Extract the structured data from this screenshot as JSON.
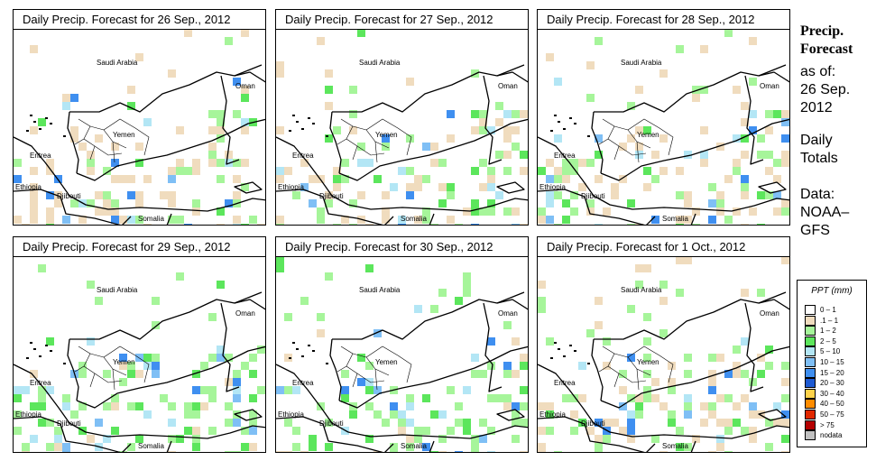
{
  "panels": [
    {
      "title": "Daily Precip. Forecast for  26 Sep., 2012",
      "seed": 11,
      "weights": [
        0.55,
        0.3,
        0.07,
        0.05,
        0.03
      ]
    },
    {
      "title": "Daily Precip. Forecast for  27 Sep., 2012",
      "seed": 23,
      "weights": [
        0.4,
        0.3,
        0.15,
        0.1,
        0.05
      ]
    },
    {
      "title": "Daily Precip. Forecast for  28 Sep., 2012",
      "seed": 37,
      "weights": [
        0.4,
        0.32,
        0.12,
        0.1,
        0.06
      ]
    },
    {
      "title": "Daily Precip. Forecast for  29 Sep., 2012",
      "seed": 41,
      "weights": [
        0.15,
        0.45,
        0.18,
        0.12,
        0.1
      ]
    },
    {
      "title": "Daily Precip. Forecast for  30 Sep., 2012",
      "seed": 53,
      "weights": [
        0.15,
        0.5,
        0.18,
        0.1,
        0.07
      ]
    },
    {
      "title": "Daily Precip. Forecast for  1 Oct., 2012",
      "seed": 67,
      "weights": [
        0.45,
        0.4,
        0.08,
        0.05,
        0.02
      ]
    }
  ],
  "map_labels": {
    "saudi": "Saudi Arabia",
    "oman": "Oman",
    "yemen": "Yemen",
    "eritrea": "Eritrea",
    "ethiopia": "Ethiopia",
    "djibouti": "Djibouti",
    "somalia": "Somalia"
  },
  "side": {
    "title_line1": "Precip.",
    "title_line2": "Forecast",
    "asof": "as of:",
    "date_line1": "26 Sep.",
    "date_line2": "2012",
    "totals_line1": "Daily",
    "totals_line2": "Totals",
    "data_line1": "Data:",
    "data_line2": "NOAA–",
    "data_line3": "GFS"
  },
  "legend": {
    "title": "PPT (mm)",
    "items": [
      {
        "label": "0 – 1",
        "color": "#ffffff"
      },
      {
        "label": ".1 – 1",
        "color": "#f0dcbe"
      },
      {
        "label": "1 – 2",
        "color": "#a6f59a"
      },
      {
        "label": "2 – 5",
        "color": "#5ce65c"
      },
      {
        "label": "5 – 10",
        "color": "#b3e6f5"
      },
      {
        "label": "10 – 15",
        "color": "#7fbff5"
      },
      {
        "label": "15 – 20",
        "color": "#3f8ff0"
      },
      {
        "label": "20 – 30",
        "color": "#1e5ad2"
      },
      {
        "label": "30 – 40",
        "color": "#ffd24a"
      },
      {
        "label": "40 – 50",
        "color": "#ff8c00"
      },
      {
        "label": "50 – 75",
        "color": "#e12800"
      },
      {
        "label": "> 75",
        "color": "#b40000"
      },
      {
        "label": "nodata",
        "color": "#c0c0c0"
      }
    ]
  }
}
